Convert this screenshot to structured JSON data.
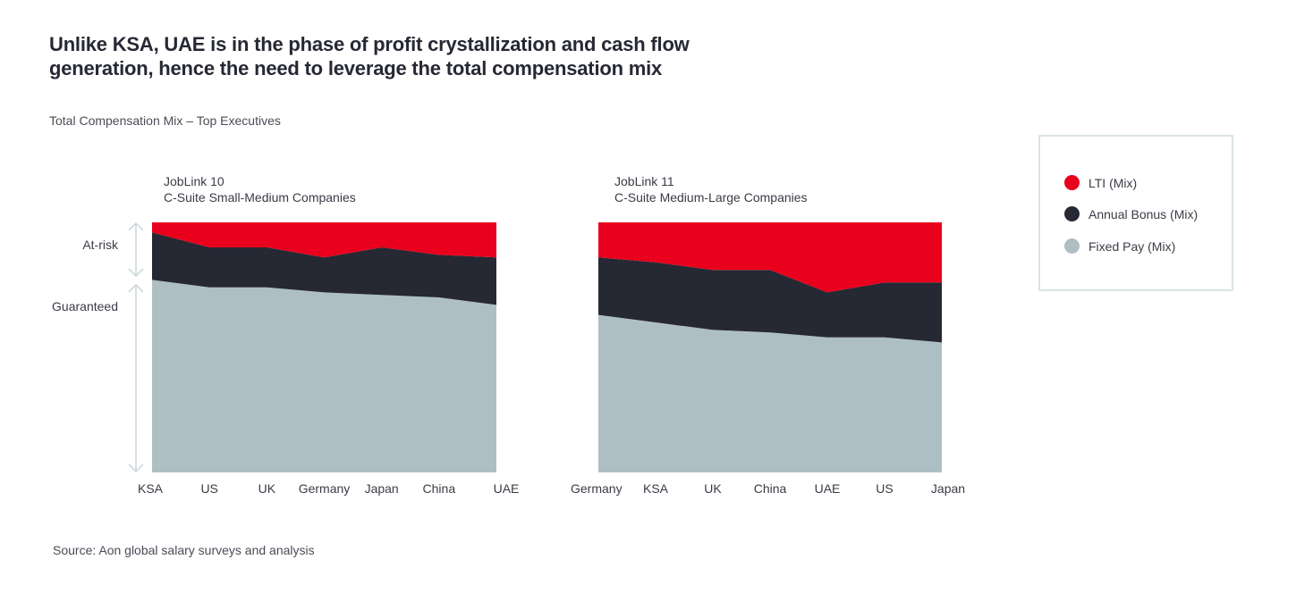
{
  "headline": "Unlike KSA, UAE is in the phase of profit crystallization and cash flow generation, hence the need to leverage the total compensation mix",
  "subtitle": "Total Compensation Mix – Top Executives",
  "source": "Source: Aon global salary surveys and analysis",
  "bracket_labels": {
    "at_risk": "At-risk",
    "guaranteed": "Guaranteed"
  },
  "colors": {
    "lti": "#e8001c",
    "bonus": "#262833",
    "fixed": "#adbfc2",
    "bracket": "#c8d6d9"
  },
  "legend": [
    {
      "label": "LTI (Mix)",
      "color": "#e8001c"
    },
    {
      "label": "Annual Bonus (Mix)",
      "color": "#262833"
    },
    {
      "label": "Fixed Pay (Mix)",
      "color": "#adbfc2"
    }
  ],
  "chart_data": [
    {
      "type": "area",
      "stacked": true,
      "title": "JobLink 10",
      "subtitle": "C-Suite Small-Medium Companies",
      "categories": [
        "KSA",
        "US",
        "UK",
        "Germany",
        "Japan",
        "China",
        "UAE"
      ],
      "ylim": [
        0,
        100
      ],
      "grid": false,
      "series": [
        {
          "name": "Fixed Pay (Mix)",
          "values": [
            77,
            74,
            74,
            72,
            71,
            70,
            67
          ]
        },
        {
          "name": "Annual Bonus (Mix)",
          "values": [
            19,
            16,
            16,
            14,
            19,
            17,
            19
          ]
        },
        {
          "name": "LTI (Mix)",
          "values": [
            4,
            10,
            10,
            14,
            10,
            13,
            14
          ]
        }
      ]
    },
    {
      "type": "area",
      "stacked": true,
      "title": "JobLink 11",
      "subtitle": "C-Suite Medium-Large Companies",
      "categories": [
        "Germany",
        "KSA",
        "UK",
        "China",
        "UAE",
        "US",
        "Japan"
      ],
      "ylim": [
        0,
        100
      ],
      "grid": false,
      "series": [
        {
          "name": "Fixed Pay (Mix)",
          "values": [
            63,
            60,
            57,
            56,
            54,
            54,
            52
          ]
        },
        {
          "name": "Annual Bonus (Mix)",
          "values": [
            23,
            24,
            24,
            25,
            18,
            22,
            24
          ]
        },
        {
          "name": "LTI (Mix)",
          "values": [
            14,
            16,
            19,
            19,
            28,
            24,
            24
          ]
        }
      ]
    }
  ]
}
